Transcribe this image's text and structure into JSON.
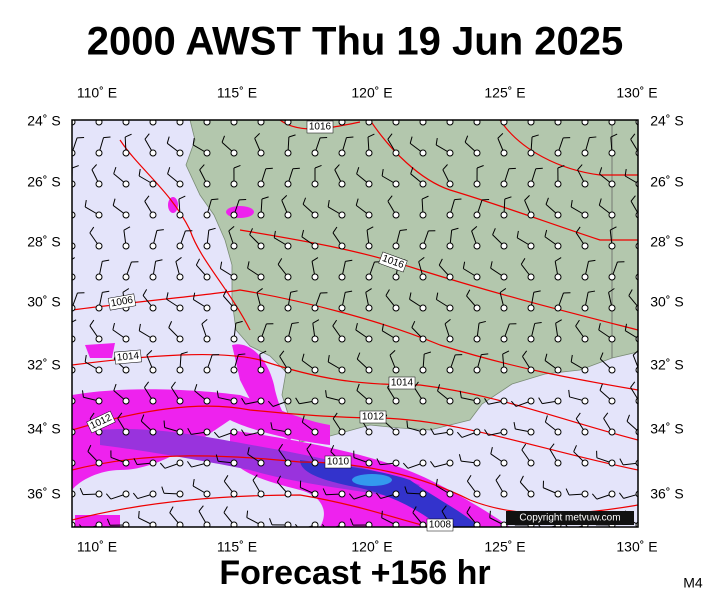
{
  "header": {
    "title": "2000 AWST Thu 19 Jun 2025"
  },
  "map": {
    "lon_labels": [
      "110˚ E",
      "115˚ E",
      "120˚ E",
      "125˚ E",
      "130˚ E"
    ],
    "lat_labels": [
      "24˚ S",
      "26˚ S",
      "28˚ S",
      "30˚ S",
      "32˚ S",
      "34˚ S",
      "36˚ S"
    ],
    "isobar_labels": [
      "1016",
      "1016",
      "1006",
      "1014",
      "1014",
      "1012",
      "1012",
      "1010",
      "1008"
    ],
    "copyright": "Copyright metvuw.com"
  },
  "footer": {
    "forecast": "Forecast +156 hr",
    "code": "M4"
  }
}
